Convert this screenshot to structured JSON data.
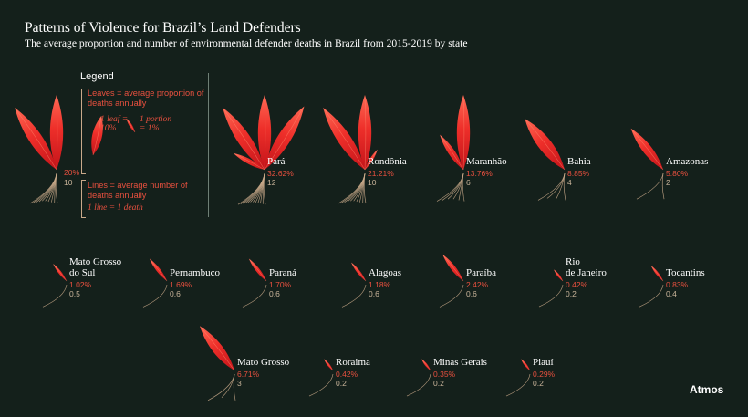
{
  "title": "Patterns of Violence for Brazil’s Land Defenders",
  "subtitle": "The average proportion and number of environmental defender deaths in Brazil from 2015-2019 by state",
  "brand": "Atmos",
  "colors": {
    "background": "#14201b",
    "leaf": "#ee2f2a",
    "leaf_light": "#ff6a55",
    "stem": "#c9a98a",
    "label": "#e8503f",
    "text": "#ffffff"
  },
  "legend": {
    "title": "Legend",
    "leaves_text": "Leaves = average proportion of deaths annually",
    "one_leaf": "1 leaf = 10%",
    "one_portion": "1 portion = 1%",
    "lines_text": "Lines = average number of deaths annually",
    "one_line": "1 line = 1 death",
    "example_pct": "20%",
    "example_deaths": "10"
  },
  "chart_data": {
    "type": "pictogram",
    "title": "Patterns of Violence for Brazil’s Land Defenders",
    "encoding": {
      "leaf_unit_pct": 10,
      "line_unit_deaths": 1
    },
    "states": [
      {
        "name": "Pará",
        "name_lines": [
          "Pará"
        ],
        "pct": 32.62,
        "pct_label": "32.62%",
        "deaths": 12,
        "deaths_label": "12"
      },
      {
        "name": "Rondônia",
        "name_lines": [
          "Rondônia"
        ],
        "pct": 21.21,
        "pct_label": "21.21%",
        "deaths": 10,
        "deaths_label": "10"
      },
      {
        "name": "Maranhão",
        "name_lines": [
          "Maranhão"
        ],
        "pct": 13.76,
        "pct_label": "13.76%",
        "deaths": 6,
        "deaths_label": "6"
      },
      {
        "name": "Bahia",
        "name_lines": [
          "Bahia"
        ],
        "pct": 8.85,
        "pct_label": "8.85%",
        "deaths": 4,
        "deaths_label": "4"
      },
      {
        "name": "Amazonas",
        "name_lines": [
          "Amazonas"
        ],
        "pct": 5.8,
        "pct_label": "5.80%",
        "deaths": 2,
        "deaths_label": "2"
      },
      {
        "name": "Mato Grosso do Sul",
        "name_lines": [
          "Mato Grosso",
          "do Sul"
        ],
        "pct": 1.02,
        "pct_label": "1.02%",
        "deaths": 0.5,
        "deaths_label": "0.5"
      },
      {
        "name": "Pernambuco",
        "name_lines": [
          "Pernambuco"
        ],
        "pct": 1.69,
        "pct_label": "1.69%",
        "deaths": 0.6,
        "deaths_label": "0.6"
      },
      {
        "name": "Paraná",
        "name_lines": [
          "Paraná"
        ],
        "pct": 1.7,
        "pct_label": "1.70%",
        "deaths": 0.6,
        "deaths_label": "0.6"
      },
      {
        "name": "Alagoas",
        "name_lines": [
          "Alagoas"
        ],
        "pct": 1.18,
        "pct_label": "1.18%",
        "deaths": 0.6,
        "deaths_label": "0.6"
      },
      {
        "name": "Paraíba",
        "name_lines": [
          "Paraíba"
        ],
        "pct": 2.42,
        "pct_label": "2.42%",
        "deaths": 0.6,
        "deaths_label": "0.6"
      },
      {
        "name": "Rio de Janeiro",
        "name_lines": [
          "Rio",
          "de Janeiro"
        ],
        "pct": 0.42,
        "pct_label": "0.42%",
        "deaths": 0.2,
        "deaths_label": "0.2"
      },
      {
        "name": "Tocantins",
        "name_lines": [
          "Tocantins"
        ],
        "pct": 0.83,
        "pct_label": "0.83%",
        "deaths": 0.4,
        "deaths_label": "0.4"
      },
      {
        "name": "Mato Grosso",
        "name_lines": [
          "Mato Grosso"
        ],
        "pct": 6.71,
        "pct_label": "6.71%",
        "deaths": 3,
        "deaths_label": "3"
      },
      {
        "name": "Roraima",
        "name_lines": [
          "Roraima"
        ],
        "pct": 0.42,
        "pct_label": "0.42%",
        "deaths": 0.2,
        "deaths_label": "0.2"
      },
      {
        "name": "Minas Gerais",
        "name_lines": [
          "Minas Gerais"
        ],
        "pct": 0.35,
        "pct_label": "0.35%",
        "deaths": 0.2,
        "deaths_label": "0.2"
      },
      {
        "name": "Piauí",
        "name_lines": [
          "Piauí"
        ],
        "pct": 0.29,
        "pct_label": "0.29%",
        "deaths": 0.2,
        "deaths_label": "0.2"
      }
    ]
  }
}
